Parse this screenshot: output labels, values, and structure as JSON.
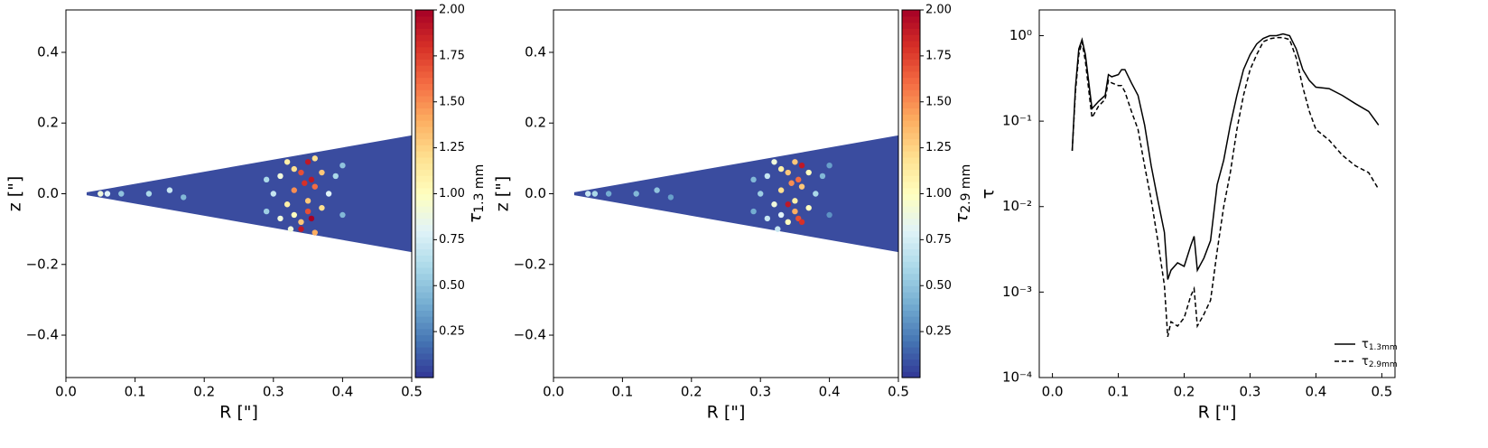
{
  "chart_data": [
    {
      "type": "scatter",
      "xlabel": "R [\"]",
      "ylabel": "z [\"]",
      "xlim": [
        0,
        0.5
      ],
      "ylim": [
        -0.52,
        0.52
      ],
      "xticks": [
        {
          "value": 0,
          "label": "0.0"
        },
        0.1,
        0.2,
        0.3,
        0.4,
        0.5
      ],
      "yticks": [
        {
          "value": -0.4,
          "label": "−0.4"
        },
        {
          "value": -0.2,
          "label": "−0.2"
        },
        {
          "value": 0,
          "label": "0.0"
        },
        0.2,
        0.4
      ],
      "x": [
        0.31,
        0.32,
        0.33,
        0.34,
        0.35,
        0.355,
        0.36,
        0.345,
        0.34,
        0.35,
        0.33,
        0.32,
        0.37,
        0.37,
        0.38,
        0.39,
        0.3,
        0.31,
        0.36,
        0.36,
        0.33,
        0.34,
        0.355,
        0.35,
        0.325,
        0.29,
        0.29,
        0.4,
        0.4,
        0.15,
        0.12,
        0.08,
        0.06,
        0.17,
        0.05
      ],
      "y": [
        0.05,
        -0.03,
        0.07,
        -0.08,
        0.09,
        -0.07,
        0.02,
        0.03,
        -0.1,
        -0.05,
        -0.06,
        0.09,
        0.06,
        -0.04,
        0,
        0.05,
        0,
        -0.07,
        0.1,
        -0.11,
        0.01,
        0.06,
        0.04,
        -0.02,
        -0.1,
        0.04,
        -0.05,
        -0.06,
        0.08,
        0.01,
        0,
        0,
        0,
        -0.01,
        0
      ],
      "c": [
        0.9,
        1.1,
        1.2,
        1.3,
        1.9,
        2,
        1.6,
        1.8,
        1.9,
        1.7,
        1,
        1.1,
        1.3,
        1.2,
        0.8,
        0.6,
        0.7,
        0.9,
        1.2,
        1.4,
        1.5,
        1.7,
        1.9,
        1.3,
        0.9,
        0.6,
        0.55,
        0.45,
        0.5,
        0.7,
        0.6,
        0.5,
        0.8,
        0.45,
        0.9
      ],
      "colormap": "RdYlBu_r",
      "colorbar": {
        "label": "τ",
        "label_sub": "1.3 mm",
        "lim": [
          0,
          2
        ],
        "ticks": [
          0.25,
          {
            "value": 0.5,
            "label": "0.50"
          },
          0.75,
          {
            "value": 1,
            "label": "1.00"
          },
          1.25,
          {
            "value": 1.5,
            "label": "1.50"
          },
          1.75,
          {
            "value": 2,
            "label": "2.00"
          }
        ]
      }
    },
    {
      "type": "scatter",
      "xlabel": "R [\"]",
      "ylabel": "z [\"]",
      "xlim": [
        0,
        0.5
      ],
      "ylim": [
        -0.52,
        0.52
      ],
      "xticks": [
        {
          "value": 0,
          "label": "0.0"
        },
        0.1,
        0.2,
        0.3,
        0.4,
        0.5
      ],
      "yticks": [
        {
          "value": -0.4,
          "label": "−0.4"
        },
        {
          "value": -0.2,
          "label": "−0.2"
        },
        {
          "value": 0,
          "label": "0.0"
        },
        0.2,
        0.4
      ],
      "x": [
        0.31,
        0.32,
        0.33,
        0.34,
        0.35,
        0.355,
        0.36,
        0.345,
        0.34,
        0.35,
        0.33,
        0.32,
        0.37,
        0.37,
        0.38,
        0.39,
        0.3,
        0.31,
        0.36,
        0.36,
        0.33,
        0.34,
        0.355,
        0.35,
        0.325,
        0.29,
        0.29,
        0.4,
        0.4,
        0.15,
        0.12,
        0.08,
        0.06,
        0.17,
        0.05
      ],
      "y": [
        0.05,
        -0.03,
        0.07,
        -0.08,
        0.09,
        -0.07,
        0.02,
        0.03,
        -0.03,
        -0.05,
        -0.06,
        0.09,
        0.06,
        -0.04,
        0,
        0.05,
        0,
        -0.07,
        0.08,
        -0.08,
        0.01,
        0.06,
        0.04,
        -0.02,
        -0.1,
        0.04,
        -0.05,
        -0.06,
        0.08,
        0.01,
        0,
        0,
        0,
        -0.01,
        0
      ],
      "c": [
        0.7,
        0.9,
        1.1,
        1,
        1.3,
        1.7,
        1.3,
        1.5,
        1.9,
        1.4,
        0.8,
        0.9,
        1,
        1,
        0.6,
        0.45,
        0.55,
        0.7,
        1.9,
        1.8,
        1.2,
        1.3,
        1.6,
        1.1,
        0.7,
        0.45,
        0.4,
        0.3,
        0.35,
        0.5,
        0.45,
        0.4,
        0.6,
        0.35,
        0.7
      ],
      "colormap": "RdYlBu_r",
      "colorbar": {
        "label": "τ",
        "label_sub": "2.9 mm",
        "lim": [
          0,
          2
        ],
        "ticks": [
          0.25,
          {
            "value": 0.5,
            "label": "0.50"
          },
          0.75,
          {
            "value": 1,
            "label": "1.00"
          },
          1.25,
          {
            "value": 1.5,
            "label": "1.50"
          },
          1.75,
          {
            "value": 2,
            "label": "2.00"
          }
        ]
      }
    },
    {
      "type": "line",
      "xlabel": "R [\"]",
      "ylabel": "τ",
      "yscale": "log",
      "xlim": [
        -0.02,
        0.52
      ],
      "ylim": [
        0.0001,
        2
      ],
      "xticks": [
        {
          "value": 0,
          "label": "0.0"
        },
        0.1,
        0.2,
        0.3,
        0.4,
        0.5
      ],
      "yticks": [
        {
          "value": 0.0001,
          "label": "10⁻⁴"
        },
        {
          "value": 0.001,
          "label": "10⁻³"
        },
        {
          "value": 0.01,
          "label": "10⁻²"
        },
        {
          "value": 0.1,
          "label": "10⁻¹"
        },
        {
          "value": 1,
          "label": "10⁰"
        }
      ],
      "legend": "lower right",
      "x": [
        0.03,
        0.035,
        0.04,
        0.045,
        0.05,
        0.06,
        0.07,
        0.08,
        0.085,
        0.09,
        0.1,
        0.105,
        0.11,
        0.12,
        0.13,
        0.14,
        0.15,
        0.16,
        0.17,
        0.175,
        0.18,
        0.19,
        0.2,
        0.21,
        0.215,
        0.22,
        0.23,
        0.24,
        0.25,
        0.26,
        0.27,
        0.28,
        0.29,
        0.3,
        0.31,
        0.32,
        0.33,
        0.34,
        0.35,
        0.36,
        0.37,
        0.38,
        0.39,
        0.4,
        0.42,
        0.44,
        0.46,
        0.48,
        0.495
      ],
      "series": [
        {
          "name": "τ",
          "name_sub": "1.3mm",
          "color": "#000000",
          "dash": "solid",
          "values": [
            0.045,
            0.25,
            0.7,
            0.9,
            0.6,
            0.14,
            0.17,
            0.2,
            0.35,
            0.33,
            0.35,
            0.4,
            0.4,
            0.28,
            0.2,
            0.09,
            0.03,
            0.012,
            0.005,
            0.0014,
            0.0018,
            0.0022,
            0.002,
            0.0035,
            0.0045,
            0.0018,
            0.0025,
            0.004,
            0.018,
            0.035,
            0.09,
            0.2,
            0.4,
            0.6,
            0.8,
            0.93,
            1,
            1,
            1.05,
            1,
            0.7,
            0.4,
            0.3,
            0.25,
            0.24,
            0.2,
            0.16,
            0.13,
            0.09
          ]
        },
        {
          "name": "τ",
          "name_sub": "2.9mm",
          "color": "#000000",
          "dash": "dashed",
          "values": [
            0.045,
            0.22,
            0.6,
            0.85,
            0.5,
            0.11,
            0.15,
            0.18,
            0.3,
            0.28,
            0.26,
            0.26,
            0.22,
            0.13,
            0.08,
            0.03,
            0.012,
            0.004,
            0.0012,
            0.0003,
            0.00045,
            0.0004,
            0.0005,
            0.0009,
            0.0011,
            0.0004,
            0.00055,
            0.0008,
            0.003,
            0.01,
            0.025,
            0.08,
            0.2,
            0.4,
            0.6,
            0.85,
            0.92,
            0.95,
            0.95,
            0.9,
            0.55,
            0.25,
            0.13,
            0.08,
            0.06,
            0.04,
            0.03,
            0.025,
            0.016
          ]
        }
      ]
    }
  ]
}
